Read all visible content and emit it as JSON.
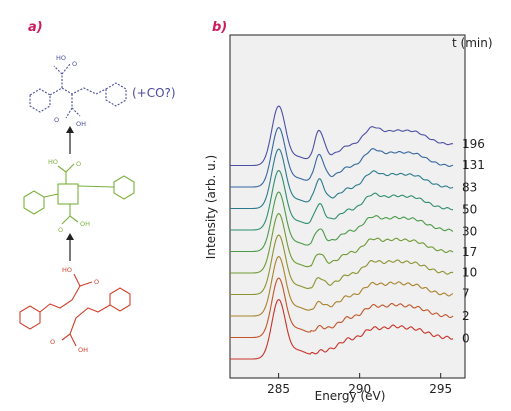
{
  "panel_a": {
    "label": "a)",
    "top_molecule": {
      "atoms": [
        "HO",
        "O",
        "O",
        "OH"
      ],
      "annotation": "(+CO?)",
      "color": "#4a4c9c"
    },
    "middle_molecule": {
      "atoms": [
        "HO",
        "O",
        "O",
        "OH"
      ],
      "color": "#7ab03a"
    },
    "bottom_molecule": {
      "atoms": [
        "HO",
        "O",
        "O",
        "OH"
      ],
      "color": "#d0402a"
    }
  },
  "panel_b": {
    "label": "b)"
  },
  "chart_data": {
    "type": "line",
    "xlabel": "Energy (eV)",
    "ylabel": "Intensity (arb. u.)",
    "xlim": [
      282,
      296.5
    ],
    "xticks": [
      285,
      290,
      295
    ],
    "legend_title": "t (min)",
    "series": [
      {
        "name": "0",
        "color": "#c8332a"
      },
      {
        "name": "2",
        "color": "#c0552a"
      },
      {
        "name": "7",
        "color": "#a9822c"
      },
      {
        "name": "10",
        "color": "#8d9230"
      },
      {
        "name": "17",
        "color": "#6e9a34"
      },
      {
        "name": "30",
        "color": "#4b9a4a"
      },
      {
        "name": "50",
        "color": "#2e8f6c"
      },
      {
        "name": "83",
        "color": "#2b7a8c"
      },
      {
        "name": "131",
        "color": "#3566a0"
      },
      {
        "name": "196",
        "color": "#4b4fa4"
      }
    ],
    "peaks_eV": {
      "pi_star_main": 285.0,
      "carbonyl": 287.5,
      "sigma_1": 290.8,
      "sigma_2": 293.2
    }
  }
}
